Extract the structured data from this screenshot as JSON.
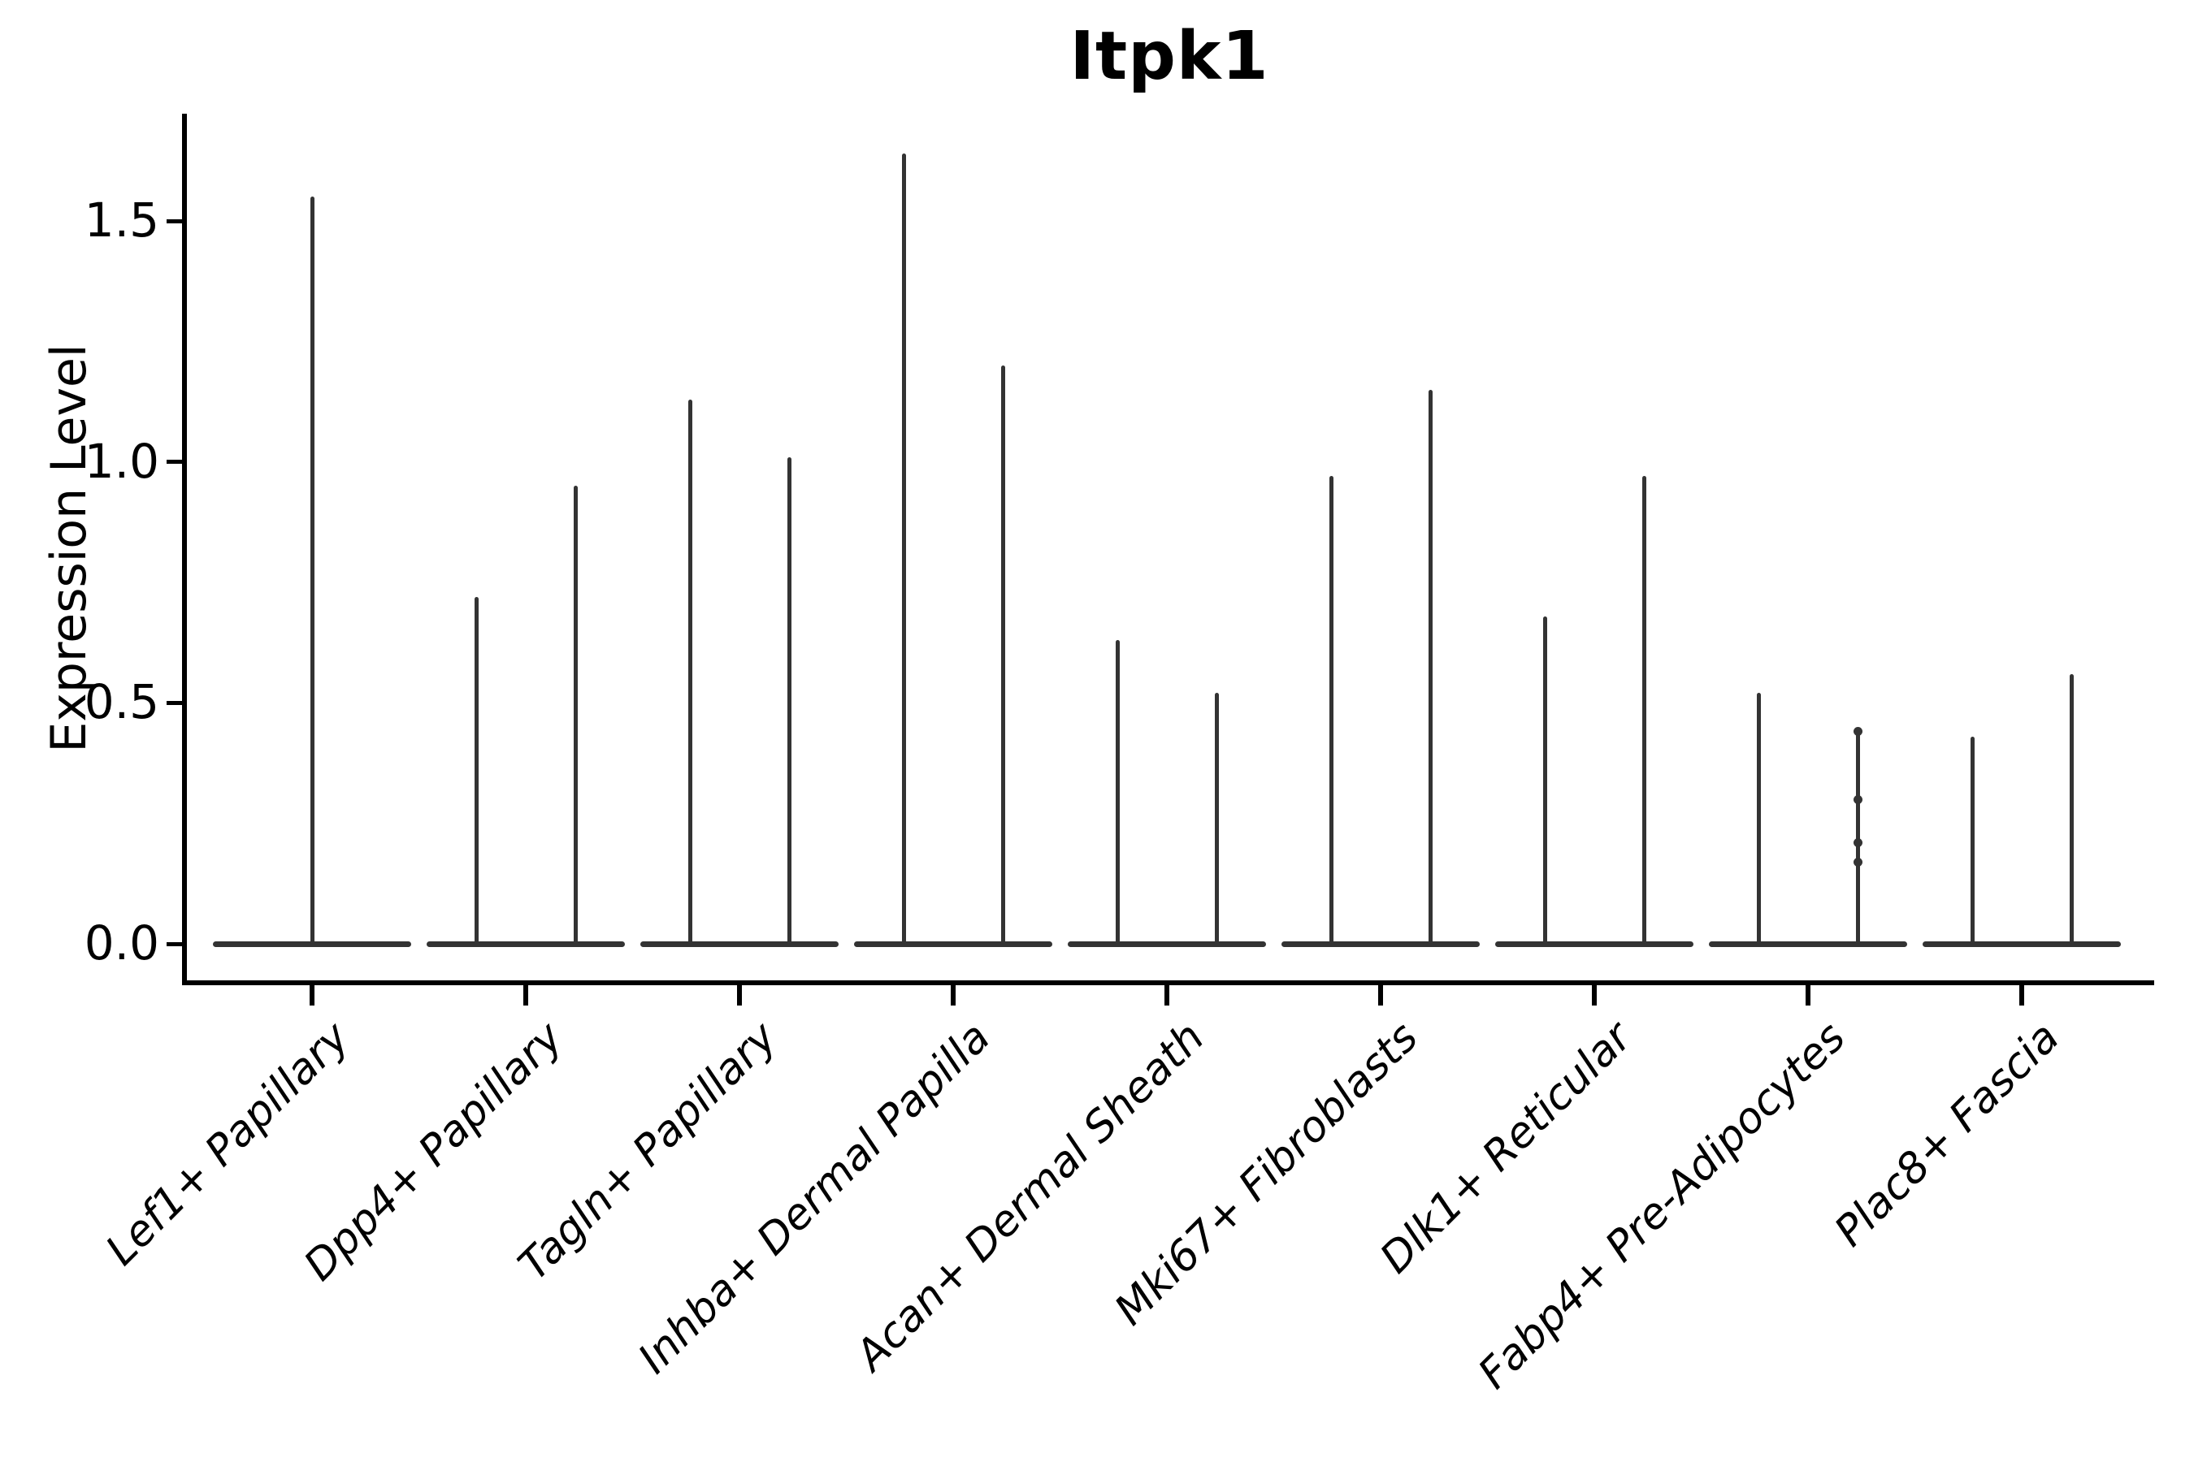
{
  "title": "Itpk1",
  "y_axis": {
    "label": "Expression Level",
    "tick_labels": [
      "0.0",
      "0.5",
      "1.0",
      "1.5"
    ]
  },
  "colors": {
    "ink": "#333333",
    "axis": "#000000",
    "background": "#ffffff"
  },
  "chart_data": {
    "type": "violin",
    "title": "Itpk1",
    "xlabel": "",
    "ylabel": "Expression Level",
    "yticks": [
      0.0,
      0.5,
      1.0,
      1.5
    ],
    "y_tick_labels": [
      "0.0",
      "0.5",
      "1.0",
      "1.5"
    ],
    "ylim": [
      -0.08,
      1.72
    ],
    "grid": false,
    "legend": "none",
    "note": "Seurat-style single-cell violin plot: each violin collapses to a wide flat base at expression 0 with a needle-thin spike rising to the maximum expressing cell. Category 1 has one centered violin; all others have two side-by-side violins.",
    "categories": [
      "Lef1+ Papillary",
      "Dpp4+ Papillary",
      "Tagln+ Papillary",
      "Inhba+ Dermal Papilla",
      "Acan+ Dermal Sheath",
      "Mki67+ Fibroblasts",
      "Dlk1+ Reticular",
      "Fabp4+ Pre-Adipocytes",
      "Plac8+ Fascia"
    ],
    "series": [
      {
        "category": "Lef1+ Papillary",
        "violin_maxima": [
          1.55
        ]
      },
      {
        "category": "Dpp4+ Papillary",
        "violin_maxima": [
          0.72,
          0.95
        ]
      },
      {
        "category": "Tagln+ Papillary",
        "violin_maxima": [
          1.13,
          1.01
        ]
      },
      {
        "category": "Inhba+ Dermal Papilla",
        "violin_maxima": [
          1.64,
          1.2
        ]
      },
      {
        "category": "Acan+ Dermal Sheath",
        "violin_maxima": [
          0.63,
          0.52
        ]
      },
      {
        "category": "Mki67+ Fibroblasts",
        "violin_maxima": [
          0.97,
          1.15
        ]
      },
      {
        "category": "Dlk1+ Reticular",
        "violin_maxima": [
          0.68,
          0.97
        ]
      },
      {
        "category": "Fabp4+ Pre-Adipocytes",
        "violin_maxima": [
          0.52,
          0.44
        ],
        "jitter_points": [
          [],
          [
            0.44,
            0.3,
            0.21,
            0.17
          ]
        ]
      },
      {
        "category": "Plac8+ Fascia",
        "violin_maxima": [
          0.43,
          0.56
        ]
      }
    ]
  }
}
